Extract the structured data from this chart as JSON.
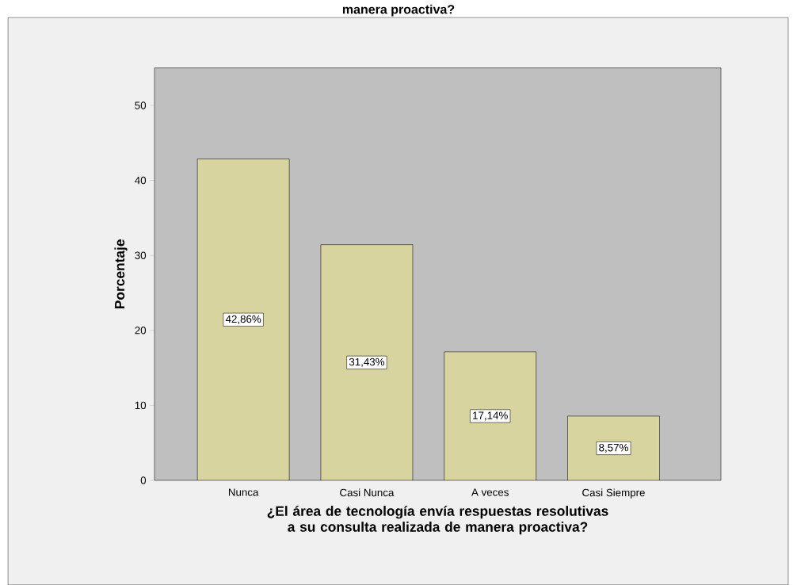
{
  "chart_data": {
    "type": "bar",
    "title": "manera proactiva?",
    "xlabel": "¿El área de tecnología envía respuestas resolutivas a su consulta realizada de manera proactiva?",
    "ylabel": "Porcentaje",
    "categories": [
      "Nunca",
      "Casi Nunca",
      "A veces",
      "Casi Siempre"
    ],
    "values": [
      42.86,
      31.43,
      17.14,
      8.57
    ],
    "value_labels": [
      "42,86%",
      "31,43%",
      "17,14%",
      "8,57%"
    ],
    "color": "#d8d4a0",
    "ylim": [
      0,
      55
    ],
    "yticks": [
      0,
      10,
      20,
      30,
      40,
      50
    ]
  }
}
